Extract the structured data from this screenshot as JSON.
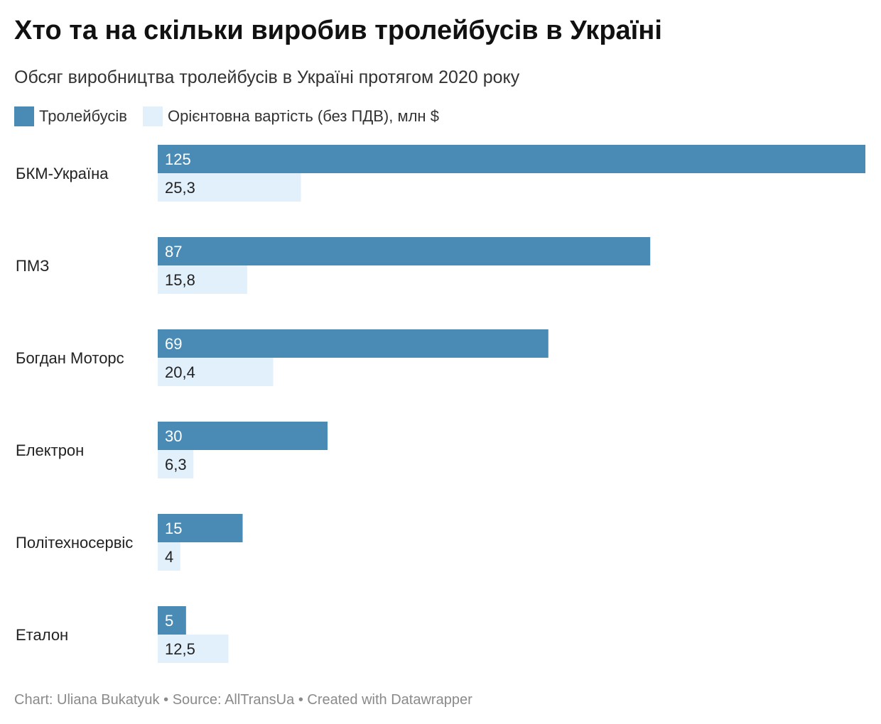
{
  "title": "Хто та на скільки виробив тролейбусів в Україні",
  "subtitle": "Обсяг виробництва тролейбусів в Україні протягом 2020 року",
  "footer": {
    "author": "Chart: Uliana Bukatyuk",
    "source": "Source: AllTransUa",
    "tool": "Created with Datawrapper",
    "separator": "•"
  },
  "colors": {
    "trolleybuses": "#4a8bb5",
    "cost": "#e2f0fc",
    "label_on_dark": "#ffffff",
    "label_on_light": "#222222"
  },
  "chart_data": {
    "type": "bar",
    "orientation": "horizontal",
    "grouped": true,
    "categories": [
      "БКМ-Україна",
      "ПМЗ",
      "Богдан Моторс",
      "Електрон",
      "Політехносервіс",
      "Еталон"
    ],
    "series": [
      {
        "name": "Тролейбусів",
        "values": [
          125,
          87,
          69,
          30,
          15,
          5
        ],
        "labels": [
          "125",
          "87",
          "69",
          "30",
          "15",
          "5"
        ]
      },
      {
        "name": "Орієнтовна вартість (без ПДВ), млн $",
        "values": [
          25.3,
          15.8,
          20.4,
          6.3,
          4,
          12.5
        ],
        "labels": [
          "25,3",
          "15,8",
          "20,4",
          "6,3",
          "4",
          "12,5"
        ]
      }
    ],
    "xlim": [
      0,
      125
    ],
    "legend": "top-left",
    "grid": false
  }
}
